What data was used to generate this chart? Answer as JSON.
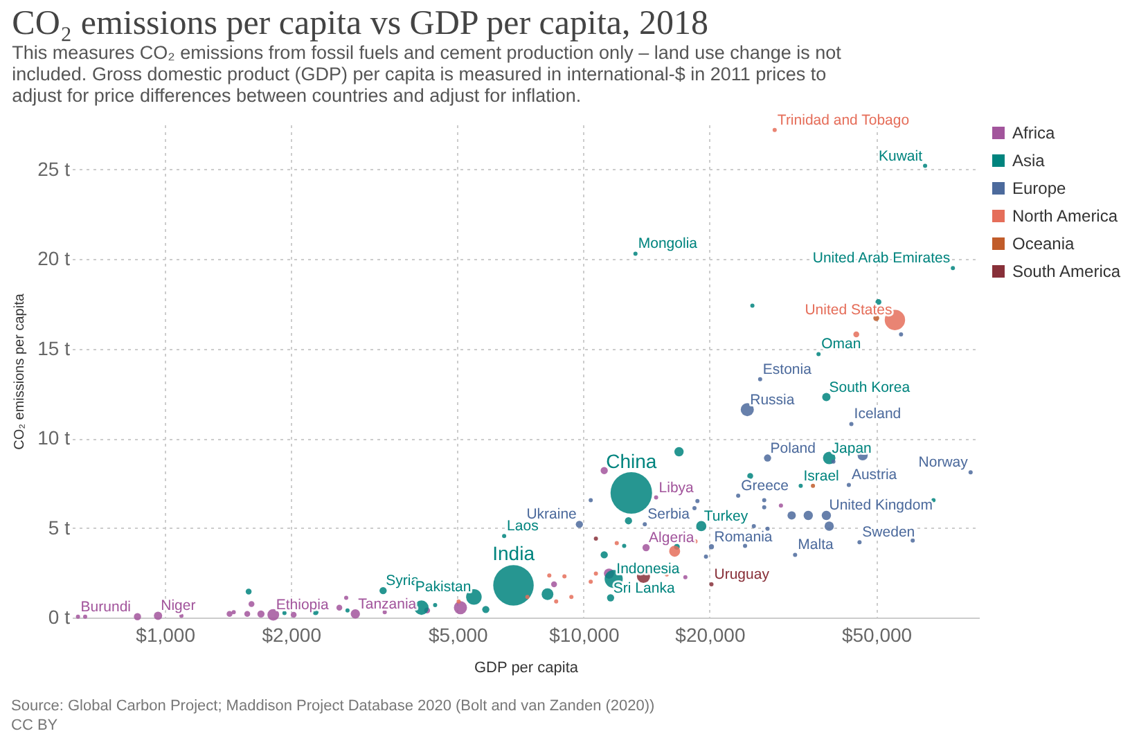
{
  "chart_data": {
    "type": "bubble",
    "title": "CO₂ emissions per capita vs GDP per capita, 2018",
    "subtitle": "This measures CO₂ emissions from fossil fuels and cement production only – land use change is not included. Gross domestic product (GDP) per capita is measured in international-$ in 2011 prices to adjust for price differences between countries and adjust for inflation.",
    "xlabel": "GDP per capita",
    "ylabel": "CO₂ emissions per capita",
    "log": "x",
    "xlim": [
      600,
      88000
    ],
    "ylim": [
      0,
      27.5
    ],
    "xticks": [
      {
        "value": 1000,
        "label": "$1,000"
      },
      {
        "value": 2000,
        "label": "$2,000"
      },
      {
        "value": 5000,
        "label": "$5,000"
      },
      {
        "value": 10000,
        "label": "$10,000"
      },
      {
        "value": 20000,
        "label": "$20,000"
      },
      {
        "value": 50000,
        "label": "$50,000"
      }
    ],
    "yticks": [
      {
        "value": 0,
        "label": "0 t"
      },
      {
        "value": 5,
        "label": "5 t"
      },
      {
        "value": 10,
        "label": "10 t"
      },
      {
        "value": 15,
        "label": "15 t"
      },
      {
        "value": 20,
        "label": "20 t"
      },
      {
        "value": 25,
        "label": "25 t"
      }
    ],
    "grid": true,
    "legend": "top right",
    "series": [
      {
        "name": "Africa",
        "color": "#a2559c",
        "x": [
          620,
          645,
          860,
          963,
          1095,
          1427,
          1460,
          1573,
          1610,
          1696,
          1815,
          2030,
          2610,
          2710,
          2850,
          3350,
          4230,
          5080,
          8500,
          11200,
          11500,
          14100,
          14900,
          17500,
          29600
        ],
        "values": [
          0.05,
          0.05,
          0.05,
          0.1,
          0.1,
          0.2,
          0.3,
          0.2,
          0.75,
          0.2,
          0.15,
          0.15,
          0.55,
          1.1,
          0.2,
          0.3,
          0.4,
          0.55,
          1.85,
          8.2,
          2.45,
          3.9,
          6.7,
          2.25,
          6.25
        ],
        "sizes": [
          0.01,
          0.01,
          0.03,
          0.04,
          0.01,
          0.02,
          0.01,
          0.02,
          0.02,
          0.03,
          0.08,
          0.02,
          0.02,
          0.01,
          0.05,
          0.01,
          0.02,
          0.1,
          0.02,
          0.03,
          0.06,
          0.03,
          0.01,
          0.01,
          0.01
        ]
      },
      {
        "name": "Asia",
        "color": "#00847e",
        "x": [
          1585,
          1930,
          2290,
          2730,
          3320,
          4100,
          4420,
          5470,
          5840,
          6460,
          6800,
          8200,
          11200,
          11600,
          11800,
          12500,
          12800,
          13000,
          13300,
          16700,
          16900,
          19100,
          25000,
          25300,
          33000,
          36400,
          38000,
          38600,
          50600,
          65400,
          68500,
          76200
        ],
        "values": [
          1.45,
          0.25,
          0.3,
          0.4,
          1.5,
          0.55,
          0.7,
          1.15,
          0.45,
          4.55,
          1.8,
          1.3,
          3.5,
          1.1,
          2.15,
          4.0,
          5.4,
          6.95,
          20.3,
          3.95,
          9.25,
          5.1,
          7.9,
          17.4,
          7.35,
          14.7,
          12.3,
          8.9,
          17.6,
          25.2,
          6.55,
          19.5
        ],
        "sizes": [
          0.02,
          0.01,
          0.02,
          0.01,
          0.03,
          0.12,
          0.01,
          0.14,
          0.03,
          0.01,
          0.95,
          0.08,
          0.03,
          0.03,
          0.19,
          0.01,
          0.03,
          1,
          0.01,
          0.02,
          0.05,
          0.06,
          0.02,
          0.01,
          0.01,
          0.01,
          0.04,
          0.09,
          0.02,
          0.01,
          0.01,
          0.01
        ]
      },
      {
        "name": "Europe",
        "color": "#4c6a9c",
        "x": [
          9770,
          10400,
          14000,
          18400,
          18700,
          19600,
          20200,
          23400,
          24300,
          24600,
          25500,
          26400,
          27000,
          27000,
          27500,
          27500,
          31400,
          32000,
          34400,
          38000,
          38600,
          39500,
          43000,
          43600,
          45600,
          46400,
          57300,
          61100,
          84000
        ],
        "values": [
          5.2,
          6.55,
          5.2,
          6.1,
          6.5,
          3.4,
          3.95,
          6.8,
          4.0,
          11.6,
          5.1,
          13.3,
          6.55,
          6.15,
          8.9,
          4.95,
          5.7,
          3.5,
          5.7,
          5.7,
          5.1,
          8.7,
          7.4,
          10.8,
          4.2,
          9.05,
          15.8,
          4.3,
          8.1
        ],
        "sizes": [
          0.03,
          0.01,
          0.01,
          0.01,
          0.01,
          0.01,
          0.015,
          0.01,
          0.01,
          0.1,
          0.01,
          0.01,
          0.01,
          0.01,
          0.03,
          0.01,
          0.04,
          0.01,
          0.05,
          0.05,
          0.05,
          0.01,
          0.01,
          0.01,
          0.01,
          0.06,
          0.01,
          0.01,
          0.01
        ]
      },
      {
        "name": "North America",
        "color": "#e56e5a",
        "x": [
          5030,
          7340,
          8280,
          8600,
          9000,
          9350,
          10400,
          10700,
          12000,
          15800,
          16500,
          18500,
          28600,
          44800,
          55400
        ],
        "values": [
          0.9,
          1.15,
          2.35,
          0.9,
          2.3,
          1.15,
          2.0,
          2.45,
          4.15,
          2.4,
          3.7,
          4.25,
          27.2,
          15.8,
          16.6
        ],
        "sizes": [
          0.01,
          0.01,
          0.01,
          0.01,
          0.01,
          0.01,
          0.01,
          0.01,
          0.01,
          0.01,
          0.07,
          0.01,
          0.01,
          0.02,
          0.24
        ]
      },
      {
        "name": "Oceania",
        "color": "#c15c2a",
        "x": [
          35300,
          50000
        ],
        "values": [
          7.35,
          16.7
        ],
        "sizes": [
          0.01,
          0.02
        ]
      },
      {
        "name": "South America",
        "color": "#883039",
        "x": [
          10700,
          13900,
          20200
        ],
        "values": [
          4.4,
          2.3,
          1.85
        ],
        "sizes": [
          0.01,
          0.1,
          0.01
        ]
      }
    ],
    "annotations": [
      {
        "text": "Burundi",
        "x": 620,
        "y": 0.05
      },
      {
        "text": "Niger",
        "x": 963,
        "y": 0.1
      },
      {
        "text": "Ethiopia",
        "x": 1815,
        "y": 0.15
      },
      {
        "text": "Tanzania",
        "x": 2850,
        "y": 0.2
      },
      {
        "text": "Algeria",
        "x": 14100,
        "y": 3.9
      },
      {
        "text": "Libya",
        "x": 14900,
        "y": 6.7
      },
      {
        "text": "Syria",
        "x": 3320,
        "y": 1.5
      },
      {
        "text": "Pakistan",
        "x": 5470,
        "y": 1.15
      },
      {
        "text": "Laos",
        "x": 6460,
        "y": 4.55
      },
      {
        "text": "India",
        "x": 6800,
        "y": 1.8
      },
      {
        "text": "Sri Lanka",
        "x": 11600,
        "y": 1.1
      },
      {
        "text": "Indonesia",
        "x": 11800,
        "y": 2.15
      },
      {
        "text": "China",
        "x": 13000,
        "y": 6.95
      },
      {
        "text": "Mongolia",
        "x": 13300,
        "y": 20.3
      },
      {
        "text": "Turkey",
        "x": 19100,
        "y": 5.1
      },
      {
        "text": "Israel",
        "x": 33000,
        "y": 7.35
      },
      {
        "text": "Oman",
        "x": 36400,
        "y": 14.7
      },
      {
        "text": "South Korea",
        "x": 38000,
        "y": 12.3
      },
      {
        "text": "Japan",
        "x": 38600,
        "y": 8.9
      },
      {
        "text": "Kuwait",
        "x": 65400,
        "y": 25.2
      },
      {
        "text": "United Arab Emirates",
        "x": 76200,
        "y": 19.5
      },
      {
        "text": "Ukraine",
        "x": 9770,
        "y": 5.2
      },
      {
        "text": "Serbia",
        "x": 14000,
        "y": 5.2
      },
      {
        "text": "Romania",
        "x": 20200,
        "y": 3.95
      },
      {
        "text": "Greece",
        "x": 23400,
        "y": 6.8
      },
      {
        "text": "Russia",
        "x": 24600,
        "y": 11.6
      },
      {
        "text": "Estonia",
        "x": 26400,
        "y": 13.3
      },
      {
        "text": "Poland",
        "x": 27500,
        "y": 8.9
      },
      {
        "text": "Malta",
        "x": 32000,
        "y": 3.5
      },
      {
        "text": "United Kingdom",
        "x": 38000,
        "y": 5.7
      },
      {
        "text": "Austria",
        "x": 43000,
        "y": 7.4
      },
      {
        "text": "Iceland",
        "x": 43600,
        "y": 10.8
      },
      {
        "text": "Sweden",
        "x": 45600,
        "y": 4.2
      },
      {
        "text": "Norway",
        "x": 84000,
        "y": 8.1
      },
      {
        "text": "Trinidad and Tobago",
        "x": 28600,
        "y": 27.2
      },
      {
        "text": "United States",
        "x": 55400,
        "y": 16.6
      },
      {
        "text": "Uruguay",
        "x": 20200,
        "y": 1.85
      },
      "Source: Global Carbon Project; Maddison Project Database 2020 (Bolt and van Zanden (2020))",
      "CC BY"
    ]
  }
}
